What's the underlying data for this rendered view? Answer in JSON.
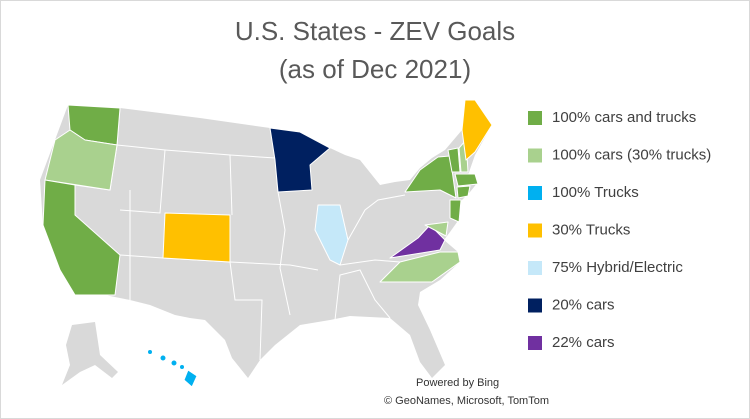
{
  "title": [
    "U.S. States - ZEV Goals",
    "(as of Dec 2021)"
  ],
  "legend": [
    {
      "label": "100% cars and trucks",
      "color": "#70ad47"
    },
    {
      "label": "100% cars (30% trucks)",
      "color": "#a9d18e"
    },
    {
      "label": "100% Trucks",
      "color": "#00b0f0"
    },
    {
      "label": "30% Trucks",
      "color": "#ffc000"
    },
    {
      "label": "75% Hybrid/Electric",
      "color": "#c5e8f9"
    },
    {
      "label": "20% cars",
      "color": "#002060"
    },
    {
      "label": "22% cars",
      "color": "#7030a0"
    }
  ],
  "attribution": [
    "Powered by Bing",
    "© GeoNames, Microsoft, TomTom"
  ]
}
